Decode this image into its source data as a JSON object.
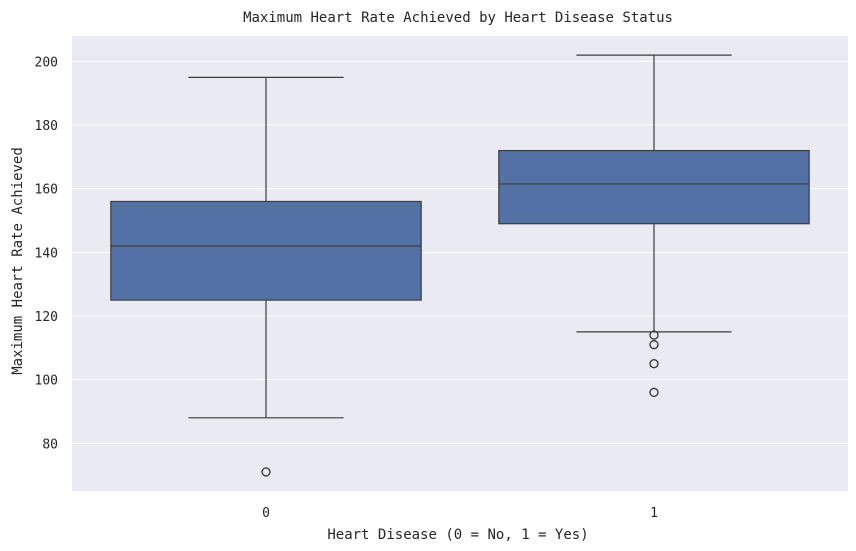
{
  "chart_data": {
    "type": "box",
    "title": "Maximum Heart Rate Achieved by Heart Disease Status",
    "xlabel": "Heart Disease (0 = No, 1 = Yes)",
    "ylabel": "Maximum Heart Rate Achieved",
    "categories": [
      "0",
      "1"
    ],
    "ylim": [
      65,
      208
    ],
    "yticks": [
      80,
      100,
      120,
      140,
      160,
      180,
      200
    ],
    "grid": true,
    "color": "#5471a5",
    "boxes": [
      {
        "category": "0",
        "whisker_low": 88,
        "q1": 125,
        "median": 142,
        "q3": 156,
        "whisker_high": 195,
        "outliers": [
          71
        ]
      },
      {
        "category": "1",
        "whisker_low": 115,
        "q1": 149,
        "median": 161.5,
        "q3": 172,
        "whisker_high": 202,
        "outliers": [
          114,
          111,
          105,
          96
        ]
      }
    ]
  }
}
